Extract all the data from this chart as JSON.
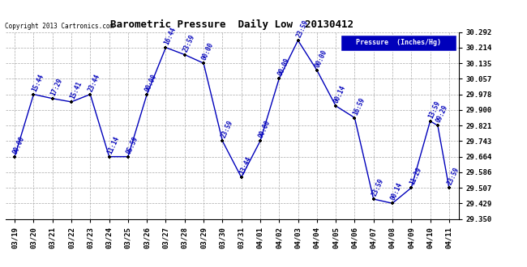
{
  "title": "Barometric Pressure  Daily Low  20130412",
  "copyright": "Copyright 2013 Cartronics.com",
  "legend_label": "Pressure  (Inches/Hg)",
  "x_labels": [
    "03/19",
    "03/20",
    "03/21",
    "03/22",
    "03/23",
    "03/24",
    "03/25",
    "03/26",
    "03/27",
    "03/28",
    "03/29",
    "03/30",
    "03/31",
    "04/01",
    "04/02",
    "04/03",
    "04/04",
    "04/05",
    "04/06",
    "04/07",
    "04/08",
    "04/09",
    "04/10",
    "04/11"
  ],
  "series": [
    [
      0,
      29.664,
      "00:00"
    ],
    [
      1,
      29.978,
      "15:44"
    ],
    [
      2,
      29.957,
      "17:29"
    ],
    [
      3,
      29.94,
      "15:41"
    ],
    [
      4,
      29.978,
      "23:44"
    ],
    [
      5,
      29.664,
      "11:14"
    ],
    [
      6,
      29.664,
      "05:59"
    ],
    [
      7,
      29.978,
      "00:00"
    ],
    [
      8,
      30.214,
      "16:44"
    ],
    [
      9,
      30.178,
      "23:59"
    ],
    [
      10,
      30.135,
      "00:00"
    ],
    [
      11,
      29.743,
      "23:59"
    ],
    [
      12,
      29.56,
      "13:44"
    ],
    [
      13,
      29.743,
      "00:00"
    ],
    [
      14,
      30.057,
      "00:09"
    ],
    [
      15,
      30.25,
      "23:59"
    ],
    [
      16,
      30.1,
      "00:00"
    ],
    [
      17,
      29.92,
      "00:14"
    ],
    [
      18,
      29.86,
      "16:59"
    ],
    [
      19,
      29.45,
      "23:59"
    ],
    [
      20,
      29.429,
      "00:14"
    ],
    [
      21,
      29.507,
      "11:29"
    ],
    [
      22,
      29.843,
      "13:59"
    ],
    [
      22.4,
      29.821,
      "09:29"
    ],
    [
      23,
      29.507,
      "23:59"
    ]
  ],
  "ylim": [
    29.35,
    30.292
  ],
  "yticks": [
    29.35,
    29.429,
    29.507,
    29.586,
    29.664,
    29.743,
    29.821,
    29.9,
    29.978,
    30.057,
    30.135,
    30.214,
    30.292
  ],
  "line_color": "#0000bb",
  "marker_color": "#000000",
  "bg_color": "#ffffff",
  "grid_color": "#aaaaaa",
  "title_color": "#000000",
  "copyright_color": "#000000",
  "legend_bg": "#0000bb",
  "legend_text_color": "#ffffff"
}
